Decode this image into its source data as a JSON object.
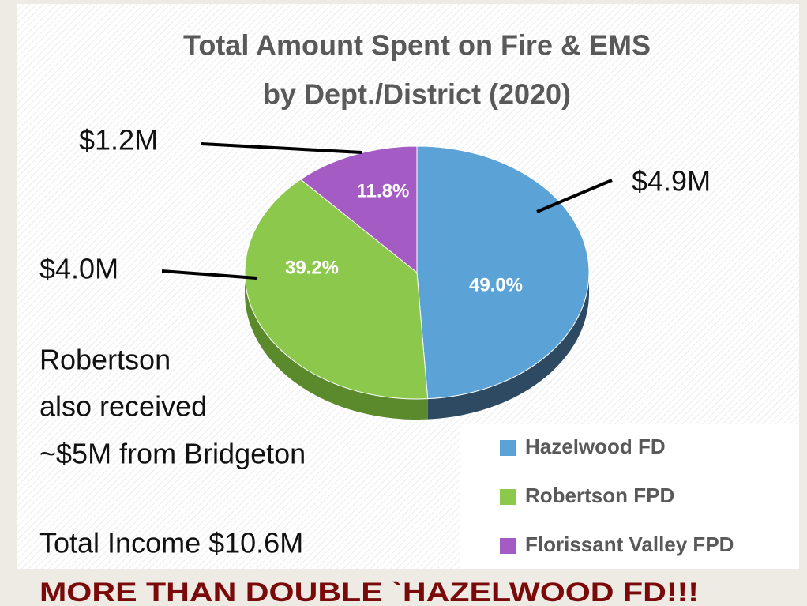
{
  "chart_data": {
    "type": "pie",
    "title_lines": [
      "Total Amount Spent on Fire & EMS",
      "by Dept./District (2020)"
    ],
    "categories": [
      "Hazelwood FD",
      "Robertson FPD",
      "Florissant Valley FPD"
    ],
    "values": [
      49.0,
      39.2,
      11.8
    ],
    "value_labels": [
      "49.0%",
      "39.2%",
      "11.8%"
    ],
    "colors": [
      "#5ba3d6",
      "#8cc84b",
      "#a45cc4"
    ],
    "side_colors": [
      "#2d4a62",
      "#5b8a2c",
      "#6a3a82"
    ],
    "amount_labels": [
      "$4.9M",
      "$4.0M",
      "$1.2M"
    ],
    "notes": [
      "Robertson",
      "also received",
      "~$5M from Bridgeton",
      "Total Income $10.6M"
    ],
    "footer": "MORE THAN DOUBLE `HAZELWOOD FD!!!",
    "legend": "bottom-right"
  }
}
